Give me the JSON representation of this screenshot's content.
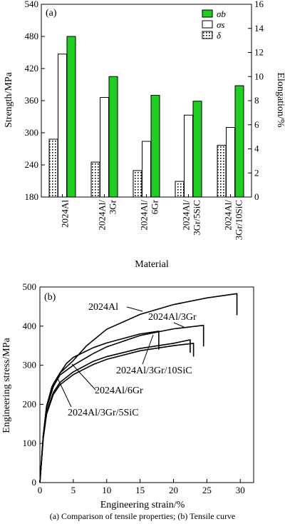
{
  "caption": "(a) Comparison of tensile properties; (b) Tensile curve",
  "chart_data": [
    {
      "type": "bar",
      "panel_label": "(a)",
      "categories": [
        "2024Al",
        "2024Al/\n3Gr",
        "2024Al/\n6Gr",
        "2024Al/\n3Gr/5SiC",
        "2024Al/\n3Gr/10SiC"
      ],
      "xlabel": "Material",
      "ylabel": "Strength/MPa",
      "ylabel_right": "Elongation/%",
      "ylim": [
        180,
        540
      ],
      "yticks": [
        180,
        240,
        300,
        360,
        420,
        480,
        540
      ],
      "ylim_right": [
        0,
        16
      ],
      "yticks_right": [
        0,
        2,
        4,
        6,
        8,
        10,
        12,
        14,
        16
      ],
      "legend_position": "top-right",
      "series": [
        {
          "name": "σb",
          "axis": "left",
          "color": "#22cc22",
          "pattern": "solid",
          "values": [
            480,
            405,
            370,
            359,
            388
          ]
        },
        {
          "name": "σs",
          "axis": "left",
          "color": "#ffffff",
          "pattern": "solid",
          "values": [
            447,
            366,
            284,
            333,
            310
          ]
        },
        {
          "name": "δ",
          "axis": "right",
          "color": "#ffffff",
          "pattern": "dots",
          "values": [
            4.8,
            2.9,
            2.2,
            1.3,
            4.3
          ]
        }
      ]
    },
    {
      "type": "line",
      "panel_label": "(b)",
      "xlabel": "Engineering strain/%",
      "ylabel": "Engineering stress/MPa",
      "xlim": [
        0,
        32
      ],
      "ylim": [
        0,
        500
      ],
      "xticks": [
        0,
        5,
        10,
        15,
        20,
        25,
        30
      ],
      "yticks": [
        0,
        100,
        200,
        300,
        400,
        500
      ],
      "series": [
        {
          "name": "2024Al",
          "points": [
            [
              0,
              0
            ],
            [
              0.5,
              120
            ],
            [
              1,
              195
            ],
            [
              1.8,
              245
            ],
            [
              3,
              280
            ],
            [
              5,
              312
            ],
            [
              7,
              350
            ],
            [
              10,
              392
            ],
            [
              15,
              430
            ],
            [
              20,
              455
            ],
            [
              25,
              472
            ],
            [
              29.5,
              483
            ],
            [
              29.5,
              428
            ]
          ]
        },
        {
          "name": "2024Al/3Gr",
          "points": [
            [
              0,
              0
            ],
            [
              0.5,
              120
            ],
            [
              1,
              190
            ],
            [
              2,
              245
            ],
            [
              3,
              275
            ],
            [
              5,
              300
            ],
            [
              8,
              330
            ],
            [
              10,
              347
            ],
            [
              15,
              376
            ],
            [
              20,
              393
            ],
            [
              24.5,
              402
            ],
            [
              24.5,
              348
            ]
          ]
        },
        {
          "name": "2024Al/3Gr/10SiC",
          "points": [
            [
              0,
              0
            ],
            [
              0.5,
              120
            ],
            [
              1,
              195
            ],
            [
              2,
              252
            ],
            [
              3,
              280
            ],
            [
              4,
              305
            ],
            [
              5,
              320
            ],
            [
              8,
              345
            ],
            [
              10,
              357
            ],
            [
              15,
              380
            ],
            [
              17.8,
              387
            ],
            [
              17.8,
              340
            ]
          ]
        },
        {
          "name": "2024Al/6Gr",
          "points": [
            [
              0,
              0
            ],
            [
              0.5,
              115
            ],
            [
              1,
              180
            ],
            [
              2,
              230
            ],
            [
              3,
              256
            ],
            [
              5,
              283
            ],
            [
              8,
              310
            ],
            [
              10,
              322
            ],
            [
              15,
              343
            ],
            [
              20,
              356
            ],
            [
              22.5,
              365
            ],
            [
              22.5,
              332
            ]
          ]
        },
        {
          "name": "2024Al/3Gr/5SiC",
          "points": [
            [
              0,
              0
            ],
            [
              0.5,
              112
            ],
            [
              1,
              175
            ],
            [
              2,
              225
            ],
            [
              3,
              250
            ],
            [
              5,
              276
            ],
            [
              8,
              302
            ],
            [
              10,
              315
            ],
            [
              15,
              337
            ],
            [
              20,
              350
            ],
            [
              23,
              356
            ],
            [
              23,
              322
            ]
          ]
        }
      ],
      "annotations": [
        {
          "text": "2024Al",
          "series": "2024Al"
        },
        {
          "text": "2024Al/3Gr",
          "series": "2024Al/3Gr"
        },
        {
          "text": "2024Al/3Gr/10SiC",
          "series": "2024Al/3Gr/10SiC"
        },
        {
          "text": "2024Al/6Gr",
          "series": "2024Al/6Gr"
        },
        {
          "text": "2024Al/3Gr/5SiC",
          "series": "2024Al/3Gr/5SiC"
        }
      ]
    }
  ]
}
